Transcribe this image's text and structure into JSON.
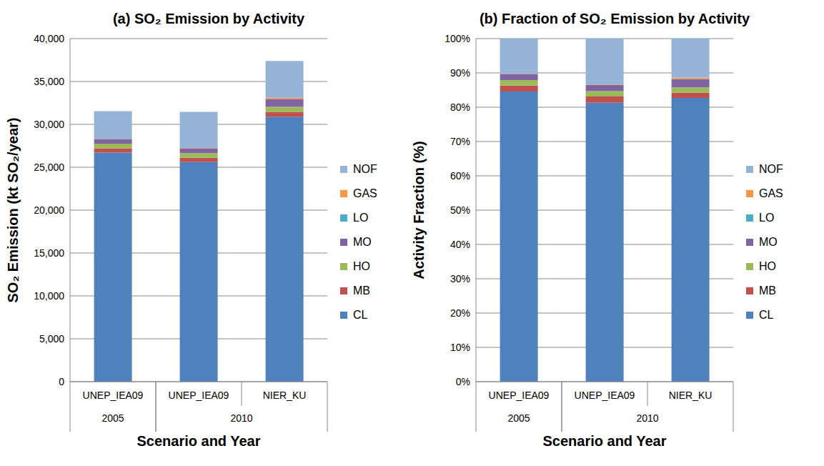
{
  "chart_data": [
    {
      "type": "bar",
      "title": "(a) SO₂ Emission by Activity",
      "x_label": "Scenario and Year",
      "y_label": "SO₂ Emission (kt SO₂/year)",
      "categories": [
        "UNEP_IEA09",
        "UNEP_IEA09",
        "NIER_KU"
      ],
      "x_groups": [
        "2005",
        "2010",
        "2010"
      ],
      "series": [
        {
          "name": "CL",
          "color": "#4f81bd",
          "values": [
            26700,
            25600,
            30900
          ]
        },
        {
          "name": "MB",
          "color": "#c0504d",
          "values": [
            500,
            500,
            550
          ]
        },
        {
          "name": "HO",
          "color": "#9bbb59",
          "values": [
            550,
            550,
            600
          ]
        },
        {
          "name": "MO",
          "color": "#8064a2",
          "values": [
            550,
            550,
            900
          ]
        },
        {
          "name": "LO",
          "color": "#4bacc6",
          "values": [
            10,
            10,
            10
          ]
        },
        {
          "name": "GAS",
          "color": "#f79646",
          "values": [
            30,
            30,
            150
          ]
        },
        {
          "name": "NOF",
          "color": "#95b3d7",
          "values": [
            3210,
            4210,
            4290
          ]
        }
      ],
      "ylim": [
        0,
        40000
      ],
      "yticks": [
        0,
        {
          "value": 5000,
          "label": "5,000"
        },
        {
          "value": 10000,
          "label": "10,000"
        },
        {
          "value": 15000,
          "label": "15,000"
        },
        {
          "value": 20000,
          "label": "20,000"
        },
        {
          "value": 25000,
          "label": "25,000"
        },
        {
          "value": 30000,
          "label": "30,000"
        },
        {
          "value": 35000,
          "label": "35,000"
        },
        {
          "value": 40000,
          "label": "40,000"
        }
      ],
      "stacked": true,
      "grid": true,
      "legend": "right"
    },
    {
      "type": "bar",
      "title": "(b) Fraction of SO₂ Emission by Activity",
      "x_label": "Scenario and Year",
      "y_label": "Activity Fraction (%)",
      "categories": [
        "UNEP_IEA09",
        "UNEP_IEA09",
        "NIER_KU"
      ],
      "x_groups": [
        "2005",
        "2010",
        "2010"
      ],
      "series": [
        {
          "name": "CL",
          "color": "#4f81bd",
          "values": [
            84.6,
            81.3,
            82.7
          ]
        },
        {
          "name": "MB",
          "color": "#c0504d",
          "values": [
            1.7,
            1.8,
            1.5
          ]
        },
        {
          "name": "HO",
          "color": "#9bbb59",
          "values": [
            1.6,
            1.6,
            1.6
          ]
        },
        {
          "name": "MO",
          "color": "#8064a2",
          "values": [
            1.8,
            1.8,
            2.4
          ]
        },
        {
          "name": "LO",
          "color": "#4bacc6",
          "values": [
            0.05,
            0.05,
            0.05
          ]
        },
        {
          "name": "GAS",
          "color": "#f79646",
          "values": [
            0.1,
            0.1,
            0.4
          ]
        },
        {
          "name": "NOF",
          "color": "#95b3d7",
          "values": [
            10.15,
            13.35,
            11.35
          ]
        }
      ],
      "ylim": [
        0,
        100
      ],
      "yticks": [
        {
          "value": 0,
          "label": "0%"
        },
        {
          "value": 10,
          "label": "10%"
        },
        {
          "value": 20,
          "label": "20%"
        },
        {
          "value": 30,
          "label": "30%"
        },
        {
          "value": 40,
          "label": "40%"
        },
        {
          "value": 50,
          "label": "50%"
        },
        {
          "value": 60,
          "label": "60%"
        },
        {
          "value": 70,
          "label": "70%"
        },
        {
          "value": 80,
          "label": "80%"
        },
        {
          "value": 90,
          "label": "90%"
        },
        {
          "value": 100,
          "label": "100%"
        }
      ],
      "stacked": true,
      "grid": true,
      "legend": "right"
    }
  ]
}
